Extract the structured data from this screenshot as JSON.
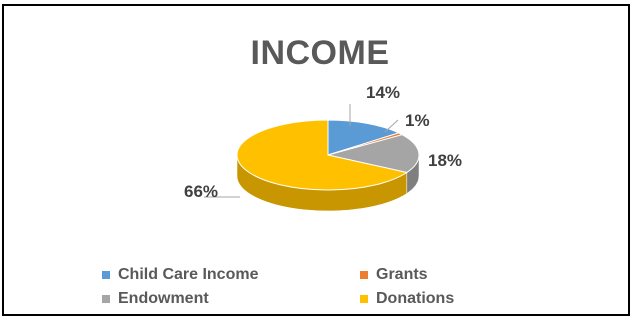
{
  "chart_data": {
    "type": "pie",
    "title": "INCOME",
    "three_d": true,
    "legend_position": "bottom",
    "slices": [
      {
        "name": "Child Care Income",
        "value": 14,
        "label": "14%",
        "color": "#5B9BD5",
        "side_color": "#41729F"
      },
      {
        "name": "Grants",
        "value": 1,
        "label": "1%",
        "color": "#ED7D31",
        "side_color": "#B35E25"
      },
      {
        "name": "Endowment",
        "value": 18,
        "label": "18%",
        "color": "#A5A5A5",
        "side_color": "#7F7F7F"
      },
      {
        "name": "Donations",
        "value": 66,
        "label": "66%",
        "color": "#FFC000",
        "side_color": "#C89600"
      }
    ]
  }
}
